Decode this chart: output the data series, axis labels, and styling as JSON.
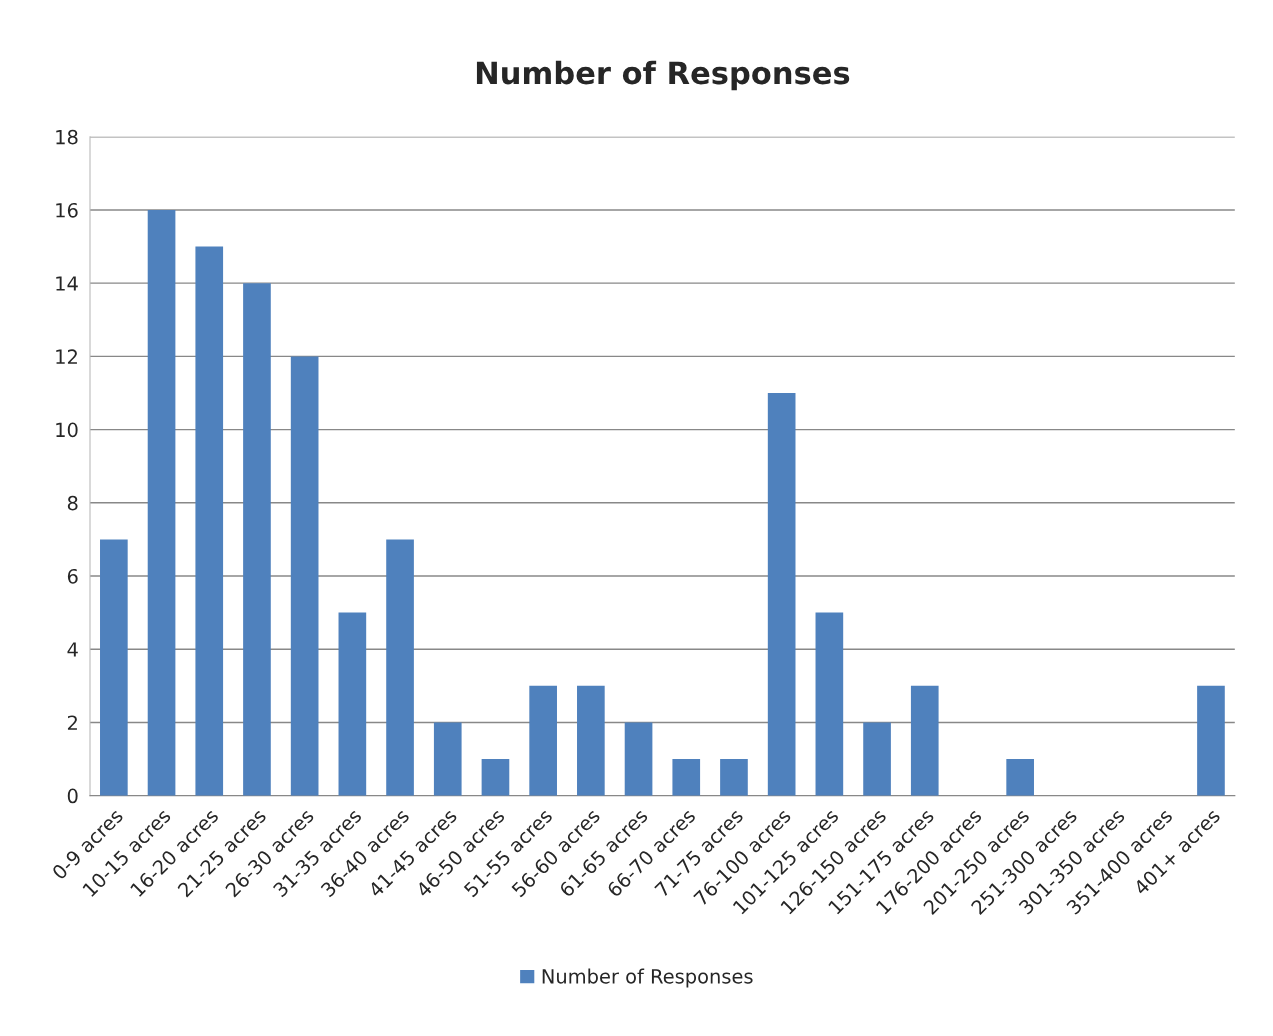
{
  "chart_data": {
    "type": "bar",
    "title": "Number of Responses",
    "categories": [
      "0-9 acres",
      "10-15 acres",
      "16-20 acres",
      "21-25 acres",
      "26-30 acres",
      "31-35 acres",
      "36-40 acres",
      "41-45 acres",
      "46-50 acres",
      "51-55 acres",
      "56-60 acres",
      "61-65 acres",
      "66-70 acres",
      "71-75 acres",
      "76-100 acres",
      "101-125 acres",
      "126-150 acres",
      "151-175 acres",
      "176-200 acres",
      "201-250 acres",
      "251-300 acres",
      "301-350 acres",
      "351-400 acres",
      "401+ acres"
    ],
    "series": [
      {
        "name": "Number of Responses",
        "color": "#4f81bd",
        "values": [
          7,
          16,
          15,
          14,
          12,
          5,
          7,
          2,
          1,
          3,
          3,
          2,
          1,
          1,
          11,
          5,
          2,
          3,
          0,
          1,
          0,
          0,
          0,
          3
        ]
      }
    ],
    "ylim": [
      0,
      18
    ],
    "yticks": [
      0,
      2,
      4,
      6,
      8,
      10,
      12,
      14,
      16,
      18
    ],
    "grid": "y",
    "legend": "bottom"
  }
}
